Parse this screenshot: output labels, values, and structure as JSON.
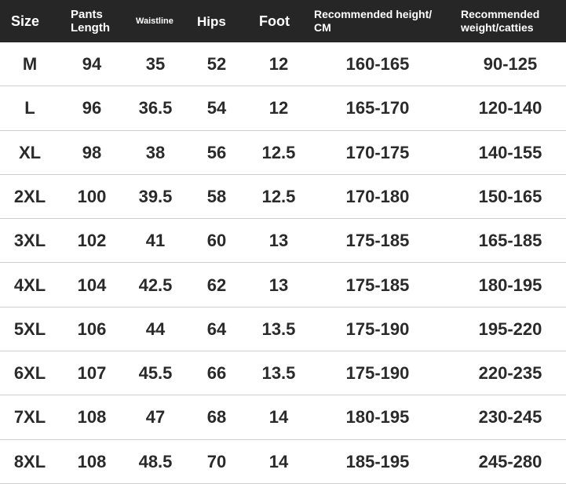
{
  "table": {
    "header": [
      [
        "Size"
      ],
      [
        "Pants",
        "Length"
      ],
      [
        "Waistline"
      ],
      [
        "Hips"
      ],
      [
        "Foot"
      ],
      [
        "Recommended height/",
        "CM"
      ],
      [
        "Recommended",
        "weight/catties"
      ]
    ],
    "rows": [
      [
        "M",
        "94",
        "35",
        "52",
        "12",
        "160-165",
        "90-125"
      ],
      [
        "L",
        "96",
        "36.5",
        "54",
        "12",
        "165-170",
        "120-140"
      ],
      [
        "XL",
        "98",
        "38",
        "56",
        "12.5",
        "170-175",
        "140-155"
      ],
      [
        "2XL",
        "100",
        "39.5",
        "58",
        "12.5",
        "170-180",
        "150-165"
      ],
      [
        "3XL",
        "102",
        "41",
        "60",
        "13",
        "175-185",
        "165-185"
      ],
      [
        "4XL",
        "104",
        "42.5",
        "62",
        "13",
        "175-185",
        "180-195"
      ],
      [
        "5XL",
        "106",
        "44",
        "64",
        "13.5",
        "175-190",
        "195-220"
      ],
      [
        "6XL",
        "107",
        "45.5",
        "66",
        "13.5",
        "175-190",
        "220-235"
      ],
      [
        "7XL",
        "108",
        "47",
        "68",
        "14",
        "180-195",
        "230-245"
      ],
      [
        "8XL",
        "108",
        "48.5",
        "70",
        "14",
        "185-195",
        "245-280"
      ]
    ]
  }
}
